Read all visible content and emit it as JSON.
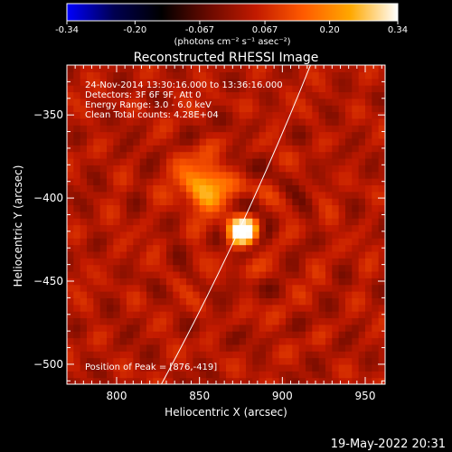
{
  "chart_data": {
    "type": "heatmap",
    "title": "Reconstructed RHESSI Image",
    "colorbar": {
      "ticks": [
        "-0.34",
        "-0.20",
        "-0.067",
        "0.067",
        "0.20",
        "0.34"
      ],
      "tick_values": [
        -0.34,
        -0.2,
        -0.067,
        0.067,
        0.2,
        0.34
      ],
      "range": [
        -0.34,
        0.34
      ],
      "unit_label": "(photons cm⁻² s⁻¹ asec⁻²)"
    },
    "xlabel": "Heliocentric X (arcsec)",
    "ylabel": "Heliocentric Y (arcsec)",
    "xlim": [
      770,
      962
    ],
    "ylim": [
      -512,
      -320
    ],
    "xticks": [
      800,
      850,
      900,
      950
    ],
    "xtick_labels": [
      "800",
      "850",
      "900",
      "950"
    ],
    "yticks": [
      -350,
      -400,
      -450,
      -500
    ],
    "ytick_labels": [
      "−350",
      "−400",
      "−450",
      "−500"
    ],
    "annotations": [
      "24-Nov-2014 13:30:16.000 to 13:36:16.000",
      "Detectors: 3F 6F 9F, Att 0",
      "Energy Range: 3.0 - 6.0 keV",
      "Clean     Total counts: 4.28E+04"
    ],
    "peak_label": "Position of Peak = [876,-419]",
    "peak": [
      876,
      -419
    ],
    "source": {
      "x": 876,
      "y": -419,
      "sigma": 6,
      "amplitude": 0.34
    },
    "secondary_source": {
      "x": 852,
      "y": -392,
      "sigma": 10,
      "amplitude": 0.18
    },
    "limb_points": [
      [
        827,
        -512
      ],
      [
        876,
        -422
      ],
      [
        917,
        -320
      ]
    ],
    "colors": {
      "background": "#000000",
      "axes": "#ffffff",
      "limb": "#ffffff",
      "colormap": [
        "#0000ff",
        "#000050",
        "#000000",
        "#6a0a00",
        "#c21a00",
        "#ff5a00",
        "#ffa800",
        "#ffffff"
      ]
    }
  },
  "timestamp": "19-May-2022 20:31"
}
